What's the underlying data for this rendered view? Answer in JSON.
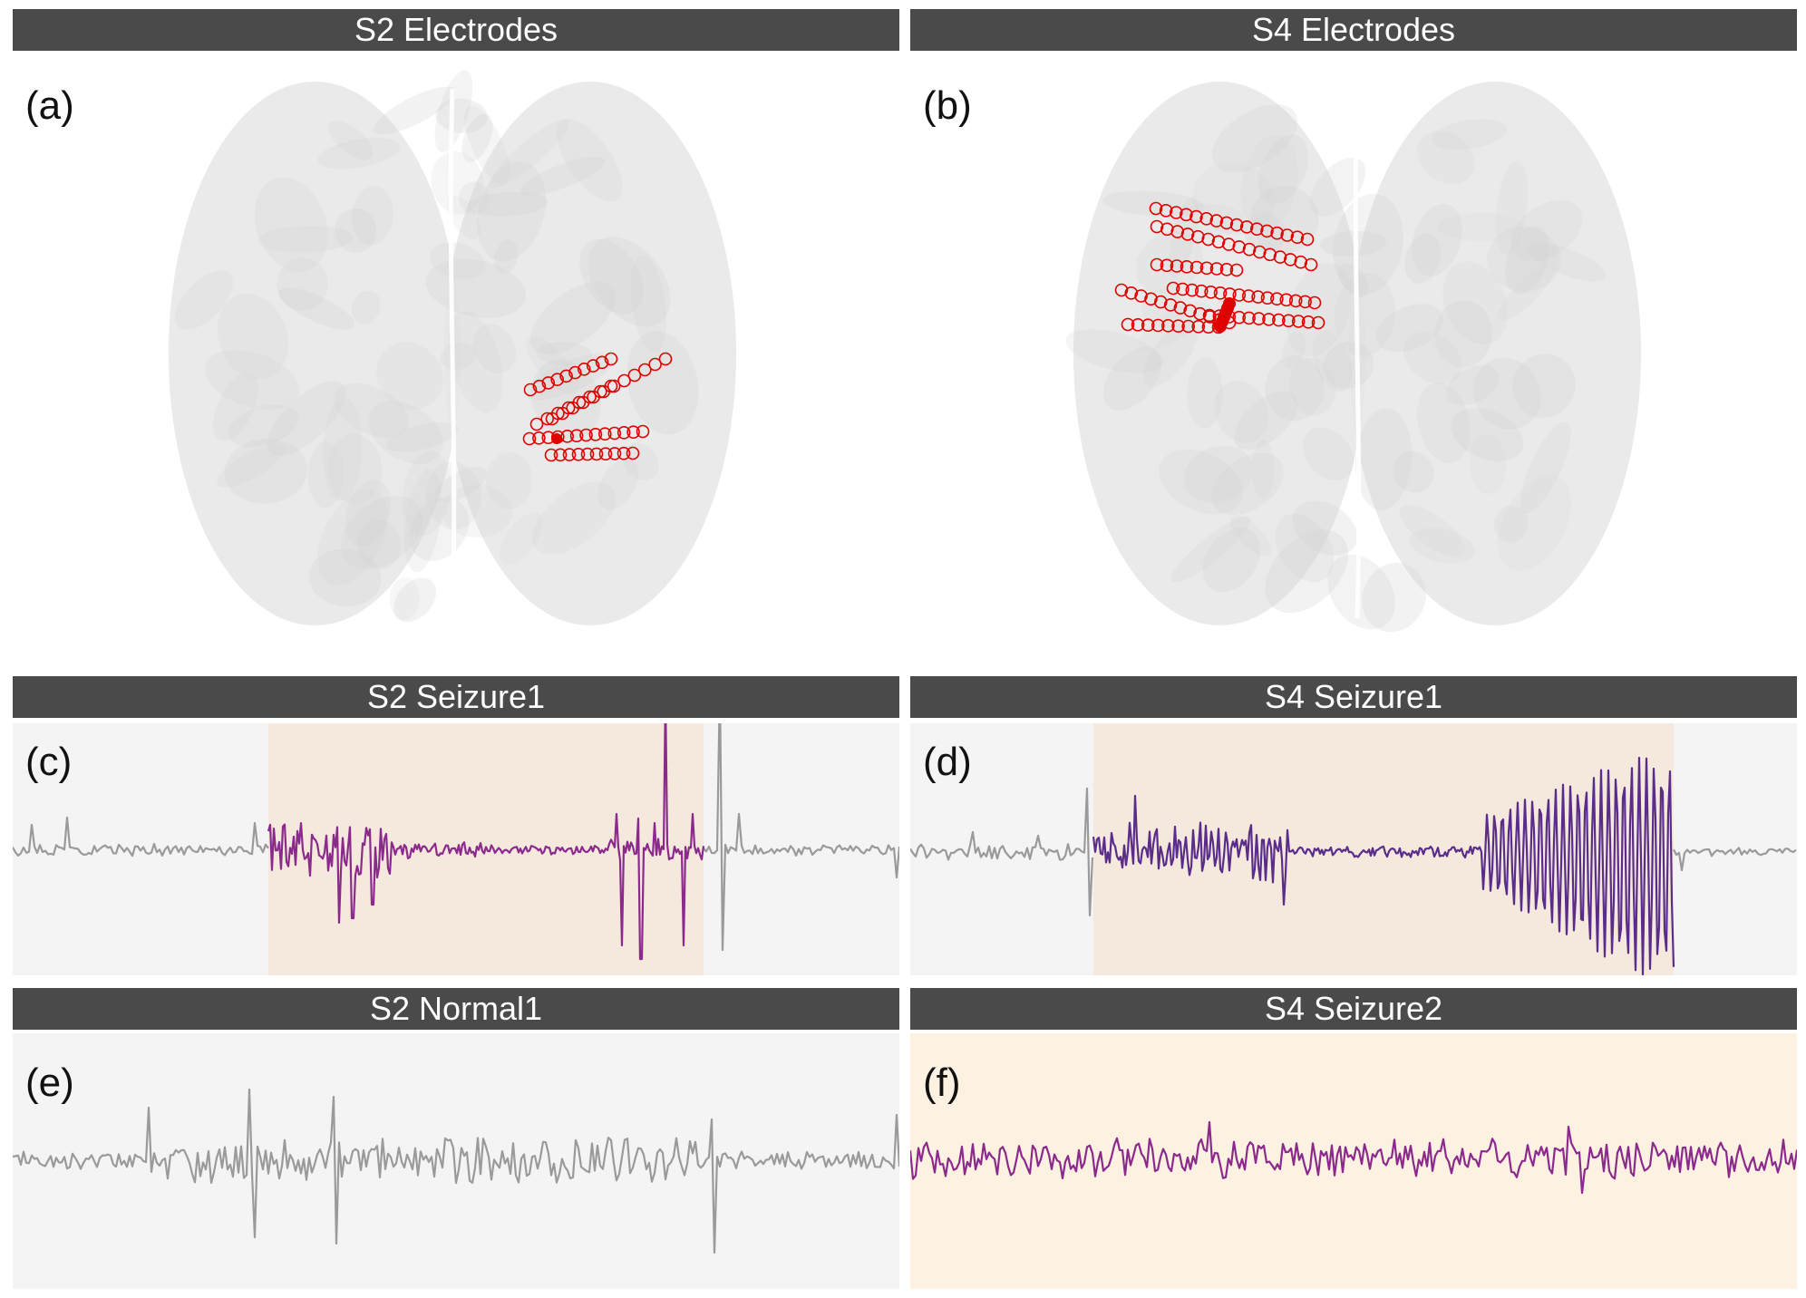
{
  "panels": {
    "a": {
      "title": "S2 Electrodes",
      "label": "(a)"
    },
    "b": {
      "title": "S4 Electrodes",
      "label": "(b)"
    },
    "c": {
      "title": "S2 Seizure1",
      "label": "(c)"
    },
    "d": {
      "title": "S4 Seizure1",
      "label": "(d)"
    },
    "e": {
      "title": "S2 Normal1",
      "label": "(e)"
    },
    "f": {
      "title": "S4 Seizure2",
      "label": "(f)"
    }
  },
  "colors": {
    "header_bg": "#4a4a4a",
    "panel_bg": "#f4f4f4",
    "seizure_highlight": "#f4e9dc",
    "seizure_highlight_full": "#fdf1e2",
    "normal_trace": "#9a9a9a",
    "seizure_trace_c": "#8b2a8c",
    "seizure_trace_d": "#5a2d8a",
    "seizure_trace_f": "#8b2a8c",
    "electrode": "#e00000",
    "brain": "#e6e6e6"
  }
}
